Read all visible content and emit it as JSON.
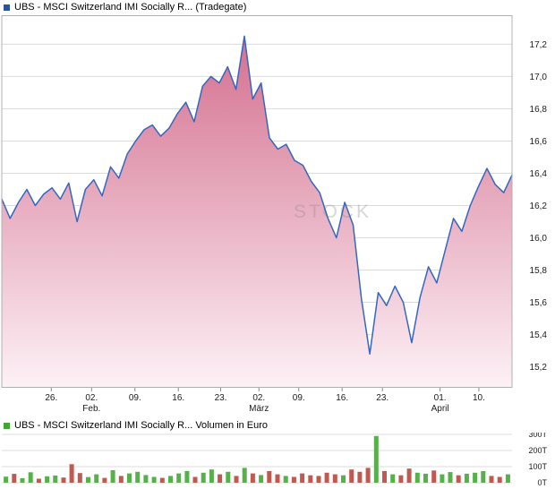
{
  "price_chart": {
    "title": "UBS - MSCI Switzerland IMI Socially R... (Tradegate)",
    "legend_color": "#2355a4"
  },
  "volume_chart": {
    "title": "UBS - MSCI Switzerland IMI Socially R... Volumen in Euro",
    "legend_color": "#42a637"
  },
  "watermark": "STOCK",
  "chart_data": [
    {
      "type": "area",
      "title": "UBS - MSCI Switzerland IMI Socially R... (Tradegate)",
      "ylabel": "",
      "ylim": [
        15.07,
        17.38
      ],
      "y_ticks": [
        {
          "value": 17.2,
          "label": "17,2"
        },
        {
          "value": 17.0,
          "label": "17,0"
        },
        {
          "value": 16.8,
          "label": "16,8"
        },
        {
          "value": 16.6,
          "label": "16,6"
        },
        {
          "value": 16.4,
          "label": "16,4"
        },
        {
          "value": 16.2,
          "label": "16,2"
        },
        {
          "value": 16.0,
          "label": "16,0"
        },
        {
          "value": 15.8,
          "label": "15,8"
        },
        {
          "value": 15.6,
          "label": "15,6"
        },
        {
          "value": 15.4,
          "label": "15,4"
        },
        {
          "value": 15.2,
          "label": "15,2"
        }
      ],
      "x_ticks": [
        {
          "pos": 0.097,
          "label": "26."
        },
        {
          "pos": 0.176,
          "label": "02."
        },
        {
          "pos": 0.261,
          "label": "09."
        },
        {
          "pos": 0.346,
          "label": "16."
        },
        {
          "pos": 0.429,
          "label": "23."
        },
        {
          "pos": 0.504,
          "label": "02."
        },
        {
          "pos": 0.582,
          "label": "09."
        },
        {
          "pos": 0.667,
          "label": "16."
        },
        {
          "pos": 0.746,
          "label": "23."
        },
        {
          "pos": 0.859,
          "label": "01."
        },
        {
          "pos": 0.935,
          "label": "10."
        }
      ],
      "month_ticks": [
        {
          "pos": 0.176,
          "label": "Feb."
        },
        {
          "pos": 0.504,
          "label": "März"
        },
        {
          "pos": 0.859,
          "label": "April"
        }
      ],
      "values": [
        16.24,
        16.12,
        16.22,
        16.3,
        16.2,
        16.27,
        16.31,
        16.24,
        16.34,
        16.1,
        16.3,
        16.36,
        16.26,
        16.44,
        16.37,
        16.52,
        16.6,
        16.67,
        16.7,
        16.63,
        16.68,
        16.77,
        16.84,
        16.72,
        16.94,
        17.0,
        16.96,
        17.06,
        16.92,
        17.25,
        16.86,
        16.96,
        16.62,
        16.55,
        16.58,
        16.48,
        16.45,
        16.35,
        16.28,
        16.12,
        16.0,
        16.22,
        16.08,
        15.62,
        15.28,
        15.66,
        15.58,
        15.7,
        15.6,
        15.35,
        15.63,
        15.82,
        15.72,
        15.92,
        16.12,
        16.04,
        16.2,
        16.32,
        16.43,
        16.33,
        16.28,
        16.39
      ],
      "line_color": "#3566c0",
      "fill_top_color": "#d4708f",
      "fill_bottom_color": "#fdf1f6",
      "grid_color": "#dcdcdc",
      "border_color": "#b0b0b0",
      "label_color": "#1a1a1a"
    },
    {
      "type": "bar",
      "title": "UBS - MSCI Switzerland IMI Socially R... Volumen in Euro",
      "unit": "T",
      "ylim": [
        0,
        300
      ],
      "y_ticks": [
        {
          "value": 300,
          "label": "300T"
        },
        {
          "value": 200,
          "label": "200T"
        },
        {
          "value": 100,
          "label": "100T"
        },
        {
          "value": 0,
          "label": "0T"
        }
      ],
      "values": [
        38,
        55,
        28,
        65,
        25,
        40,
        45,
        32,
        115,
        60,
        35,
        52,
        30,
        78,
        42,
        58,
        68,
        48,
        36,
        30,
        42,
        58,
        72,
        36,
        62,
        82,
        52,
        68,
        42,
        92,
        58,
        48,
        72,
        52,
        42,
        36,
        58,
        46,
        42,
        62,
        52,
        46,
        82,
        68,
        92,
        290,
        72,
        52,
        46,
        88,
        62,
        56,
        76,
        52,
        66,
        46,
        56,
        62,
        72,
        42,
        36,
        52
      ],
      "directions": [
        "g",
        "r",
        "g",
        "g",
        "r",
        "g",
        "g",
        "r",
        "r",
        "r",
        "g",
        "g",
        "r",
        "g",
        "r",
        "g",
        "g",
        "g",
        "g",
        "r",
        "g",
        "g",
        "g",
        "r",
        "g",
        "g",
        "r",
        "g",
        "r",
        "g",
        "r",
        "g",
        "r",
        "r",
        "g",
        "r",
        "r",
        "r",
        "r",
        "r",
        "r",
        "g",
        "r",
        "r",
        "r",
        "g",
        "r",
        "g",
        "r",
        "r",
        "g",
        "g",
        "r",
        "g",
        "g",
        "r",
        "g",
        "g",
        "g",
        "r",
        "r",
        "g"
      ],
      "up_color": "#56b14a",
      "down_color": "#c05a50",
      "grid_color": "#dcdcdc",
      "label_color": "#1a1a1a"
    }
  ]
}
